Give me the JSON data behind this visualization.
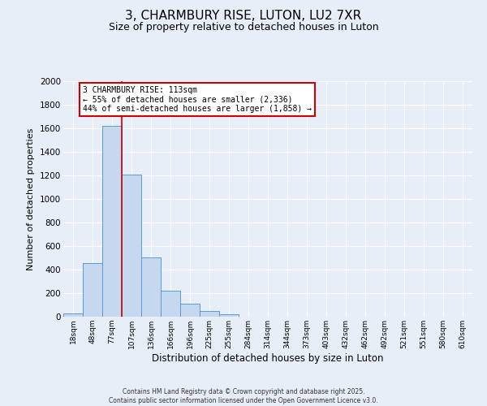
{
  "title": "3, CHARMBURY RISE, LUTON, LU2 7XR",
  "subtitle": "Size of property relative to detached houses in Luton",
  "xlabel": "Distribution of detached houses by size in Luton",
  "ylabel": "Number of detached properties",
  "bar_labels": [
    "18sqm",
    "48sqm",
    "77sqm",
    "107sqm",
    "136sqm",
    "166sqm",
    "196sqm",
    "225sqm",
    "255sqm",
    "284sqm",
    "314sqm",
    "344sqm",
    "373sqm",
    "403sqm",
    "432sqm",
    "462sqm",
    "492sqm",
    "521sqm",
    "551sqm",
    "580sqm",
    "610sqm"
  ],
  "bar_values": [
    30,
    455,
    1620,
    1210,
    505,
    220,
    110,
    45,
    20,
    0,
    0,
    0,
    0,
    0,
    0,
    0,
    0,
    0,
    0,
    0,
    0
  ],
  "bar_color": "#c5d8f0",
  "bar_edge_color": "#5b9bd5",
  "marker_line_color": "#cc0000",
  "marker_label_line1": "3 CHARMBURY RISE: 113sqm",
  "marker_label_line2": "← 55% of detached houses are smaller (2,336)",
  "marker_label_line3": "44% of semi-detached houses are larger (1,858) →",
  "annotation_box_color": "#ffffff",
  "annotation_box_edge": "#cc0000",
  "ylim": [
    0,
    2000
  ],
  "yticks": [
    0,
    200,
    400,
    600,
    800,
    1000,
    1200,
    1400,
    1600,
    1800,
    2000
  ],
  "background_color": "#e8eef8",
  "grid_color": "#ffffff",
  "footer_line1": "Contains HM Land Registry data © Crown copyright and database right 2025.",
  "footer_line2": "Contains public sector information licensed under the Open Government Licence v3.0.",
  "title_fontsize": 11,
  "subtitle_fontsize": 9
}
